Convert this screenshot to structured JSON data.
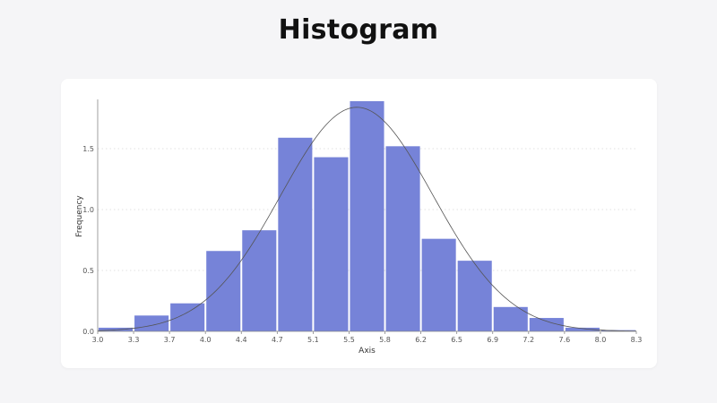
{
  "title": "Histogram",
  "colors": {
    "bar": "#7683d8",
    "curve": "#555555",
    "grid": "#d8d8d8",
    "axis": "#888888"
  },
  "chart_data": {
    "type": "bar",
    "xlabel": "Axis",
    "ylabel": "Frequency",
    "bin_edges": [
      3.0,
      3.3,
      3.7,
      4.0,
      4.4,
      4.7,
      5.1,
      5.5,
      5.8,
      6.2,
      6.5,
      6.9,
      7.2,
      7.6,
      8.0,
      8.3
    ],
    "x_tick_labels": [
      "3.0",
      "3.3",
      "3.7",
      "4.0",
      "4.4",
      "4.7",
      "5.1",
      "5.5",
      "5.8",
      "6.2",
      "6.5",
      "6.9",
      "7.2",
      "7.6",
      "8.0",
      "8.3"
    ],
    "values": [
      0.03,
      0.13,
      0.23,
      0.66,
      0.83,
      1.59,
      1.43,
      1.89,
      1.52,
      0.76,
      0.58,
      0.2,
      0.11,
      0.03,
      0.01
    ],
    "y_ticks": [
      0.0,
      0.5,
      1.0,
      1.5
    ],
    "y_tick_labels": [
      "0.0",
      "0.5",
      "1.0",
      "1.5"
    ],
    "ylim": [
      0,
      1.89
    ],
    "grid": "horizontal dotted",
    "overlay_curve": {
      "type": "normal",
      "mean": 5.55,
      "sd": 0.75,
      "peak": 1.84
    }
  }
}
